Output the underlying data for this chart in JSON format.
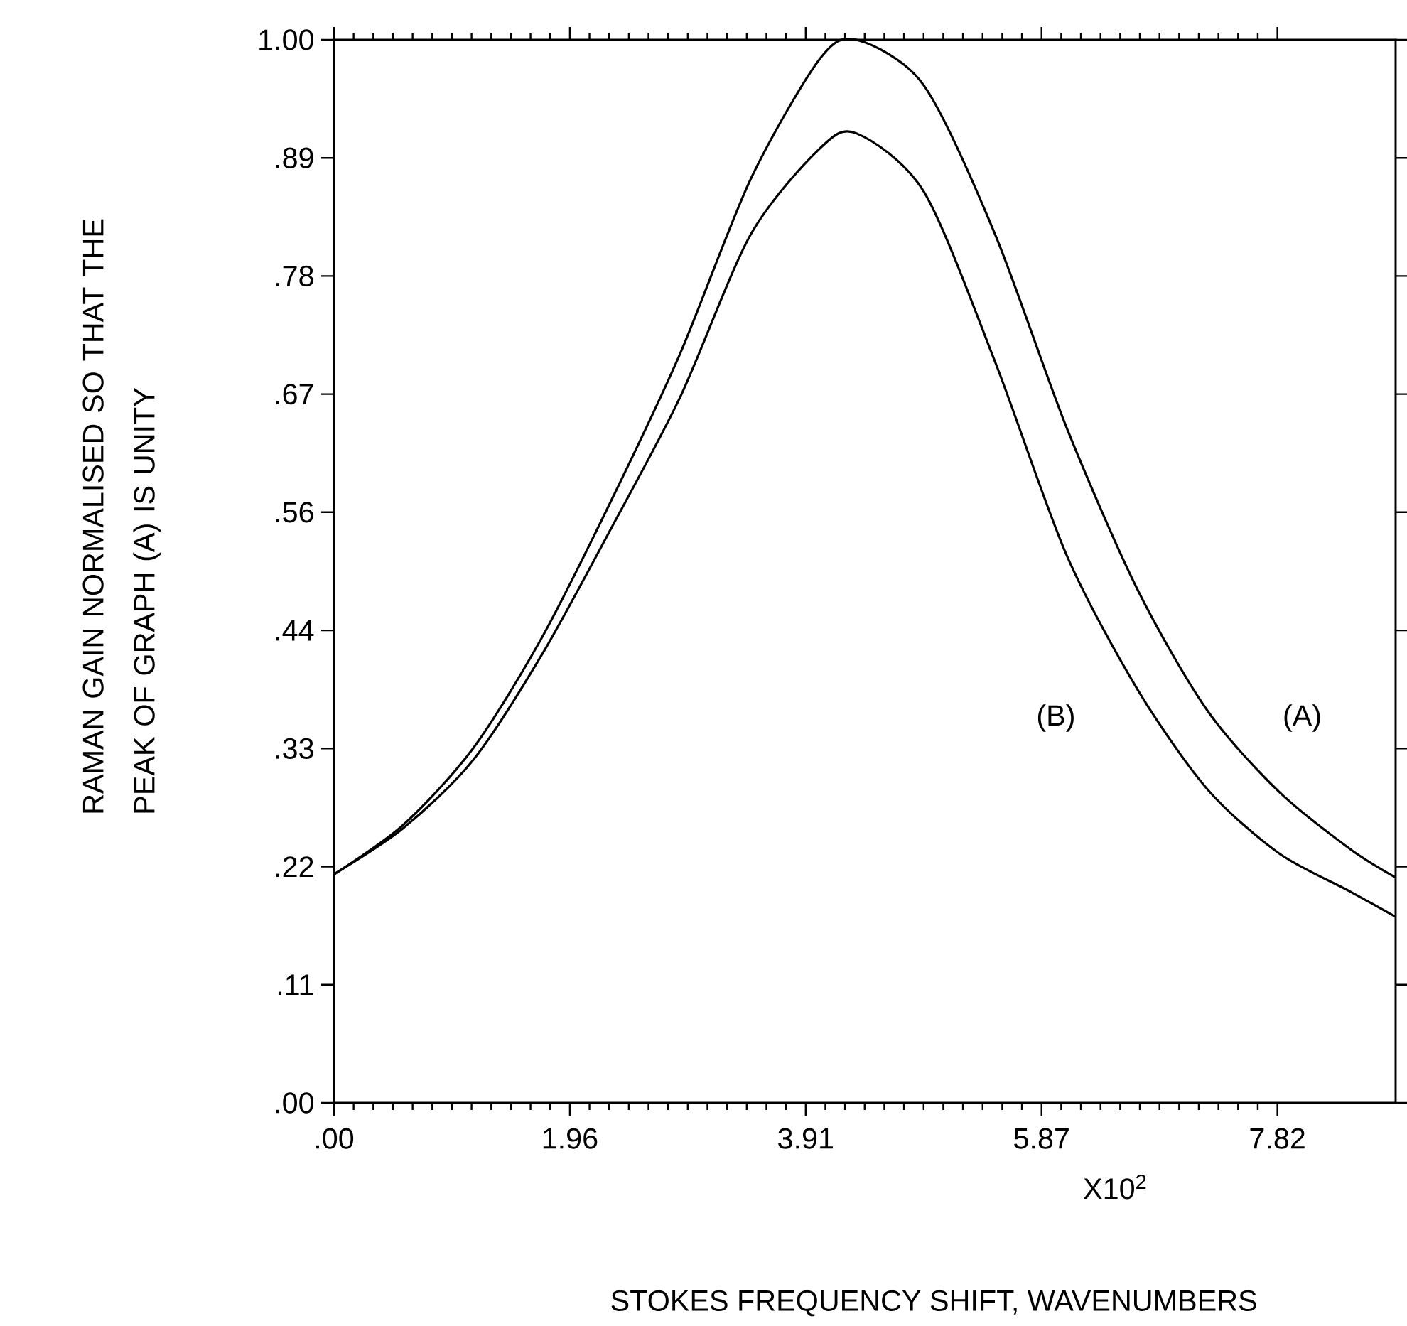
{
  "chart_data": {
    "type": "line",
    "xlabel": "STOKES FREQUENCY SHIFT, WAVENUMBERS",
    "ylabel": "RAMAN GAIN NORMALISED SO THAT THE PEAK OF GRAPH (A) IS UNITY",
    "x": [
      0,
      0.57,
      1.15,
      1.72,
      2.3,
      2.87,
      3.45,
      4.02,
      4.33,
      4.89,
      5.48,
      6.07,
      6.66,
      7.24,
      7.83,
      8.42,
      8.8
    ],
    "series": [
      {
        "color": "#000000",
        "values": [
          0.215,
          0.261,
          0.333,
          0.437,
          0.567,
          0.705,
          0.868,
          0.981,
          1.0,
          0.957,
          0.817,
          0.636,
          0.483,
          0.369,
          0.293,
          0.239,
          0.212
        ]
      },
      {
        "color": "#000000",
        "values": [
          0.215,
          0.258,
          0.322,
          0.421,
          0.541,
          0.664,
          0.816,
          0.897,
          0.912,
          0.857,
          0.697,
          0.516,
          0.389,
          0.295,
          0.235,
          0.199,
          0.175
        ]
      }
    ],
    "xlim": [
      0,
      8.8
    ],
    "ylim": [
      0,
      1
    ],
    "xticks": [
      {
        "value": 0,
        "label": ".00"
      },
      {
        "value": 1.955,
        "label": "1.96"
      },
      {
        "value": 3.91,
        "label": "3.91"
      },
      {
        "value": 5.865,
        "label": "5.87"
      },
      {
        "value": 7.82,
        "label": "7.82"
      }
    ],
    "yticks": [
      {
        "value": 0,
        "label": ".00"
      },
      {
        "value": 0.1111,
        "label": ".11"
      },
      {
        "value": 0.2222,
        "label": ".22"
      },
      {
        "value": 0.3333,
        "label": ".33"
      },
      {
        "value": 0.4444,
        "label": ".44"
      },
      {
        "value": 0.5556,
        "label": ".56"
      },
      {
        "value": 0.6667,
        "label": ".67"
      },
      {
        "value": 0.7778,
        "label": ".78"
      },
      {
        "value": 0.8889,
        "label": ".89"
      },
      {
        "value": 1,
        "label": "1.00"
      }
    ],
    "annotations": [
      "X10$^{2}$",
      "(B)",
      "(A)"
    ],
    "line_style": "solid",
    "marker": "none"
  }
}
